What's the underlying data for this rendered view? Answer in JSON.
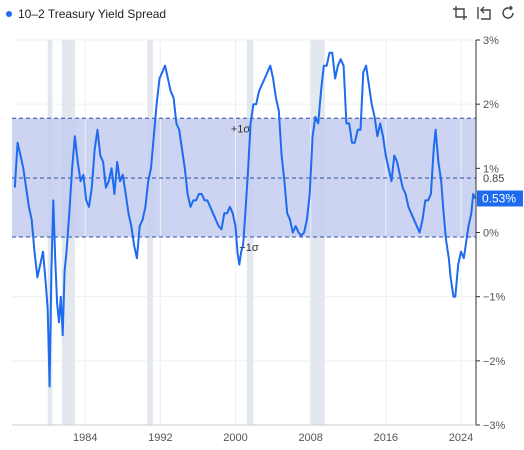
{
  "legend": {
    "series_name": "10–2 Treasury Yield Spread"
  },
  "toolbar": {
    "icons": [
      "crop-icon",
      "undo-icon",
      "refresh-icon"
    ]
  },
  "colors": {
    "line": "#1e6bf0",
    "band": "#c3cdee",
    "recession": "#e3e8ef",
    "badge": "#1e6bf0"
  },
  "chart_data": {
    "type": "line",
    "title": "",
    "xlabel": "",
    "ylabel": "",
    "x_ticks": [
      "1984",
      "1992",
      "2000",
      "2008",
      "2016",
      "2024"
    ],
    "x_tick_values": [
      1984,
      1992,
      2000,
      2008,
      2016,
      2024
    ],
    "xlim": [
      1976.2,
      2025.6
    ],
    "y_ticks": [
      "3%",
      "2%",
      "1%",
      "0%",
      "−1%",
      "−2%",
      "−3%"
    ],
    "y_tick_values": [
      3,
      2,
      1,
      0,
      -1,
      -2,
      -3
    ],
    "ylim": [
      -3,
      3
    ],
    "band": {
      "upper": 1.78,
      "lower": -0.07,
      "upper_label": "+1σ",
      "lower_label": "−1σ"
    },
    "mean": {
      "value": 0.85,
      "label": "0.85"
    },
    "current": {
      "value": 0.53,
      "label": "0.53%"
    },
    "recessions": [
      [
        1980.0,
        1980.5
      ],
      [
        1981.5,
        1982.9
      ],
      [
        1990.6,
        1991.2
      ],
      [
        2001.2,
        2001.9
      ],
      [
        2007.9,
        2009.5
      ]
    ],
    "series": [
      {
        "name": "10–2 Treasury Yield Spread",
        "points": [
          [
            1976.5,
            0.7
          ],
          [
            1976.8,
            1.4
          ],
          [
            1977.1,
            1.2
          ],
          [
            1977.4,
            1.0
          ],
          [
            1977.7,
            0.7
          ],
          [
            1978.0,
            0.4
          ],
          [
            1978.3,
            0.2
          ],
          [
            1978.6,
            -0.3
          ],
          [
            1978.9,
            -0.7
          ],
          [
            1979.2,
            -0.5
          ],
          [
            1979.5,
            -0.3
          ],
          [
            1979.8,
            -0.8
          ],
          [
            1980.0,
            -1.2
          ],
          [
            1980.2,
            -2.4
          ],
          [
            1980.4,
            -0.6
          ],
          [
            1980.6,
            0.5
          ],
          [
            1980.8,
            -0.4
          ],
          [
            1981.0,
            -1.1
          ],
          [
            1981.2,
            -1.4
          ],
          [
            1981.4,
            -1.0
          ],
          [
            1981.6,
            -1.6
          ],
          [
            1981.8,
            -0.6
          ],
          [
            1982.0,
            -0.3
          ],
          [
            1982.3,
            0.3
          ],
          [
            1982.6,
            1.0
          ],
          [
            1982.9,
            1.5
          ],
          [
            1983.2,
            1.1
          ],
          [
            1983.5,
            0.8
          ],
          [
            1983.8,
            0.9
          ],
          [
            1984.1,
            0.5
          ],
          [
            1984.4,
            0.4
          ],
          [
            1984.7,
            0.7
          ],
          [
            1985.0,
            1.3
          ],
          [
            1985.3,
            1.6
          ],
          [
            1985.6,
            1.2
          ],
          [
            1985.9,
            1.1
          ],
          [
            1986.2,
            0.7
          ],
          [
            1986.5,
            0.8
          ],
          [
            1986.8,
            1.0
          ],
          [
            1987.1,
            0.6
          ],
          [
            1987.4,
            1.1
          ],
          [
            1987.7,
            0.8
          ],
          [
            1988.0,
            0.9
          ],
          [
            1988.3,
            0.6
          ],
          [
            1988.6,
            0.3
          ],
          [
            1988.9,
            0.1
          ],
          [
            1989.2,
            -0.2
          ],
          [
            1989.5,
            -0.4
          ],
          [
            1989.8,
            0.1
          ],
          [
            1990.1,
            0.2
          ],
          [
            1990.4,
            0.4
          ],
          [
            1990.7,
            0.8
          ],
          [
            1991.0,
            1.0
          ],
          [
            1991.3,
            1.5
          ],
          [
            1991.6,
            2.0
          ],
          [
            1991.9,
            2.4
          ],
          [
            1992.2,
            2.5
          ],
          [
            1992.5,
            2.6
          ],
          [
            1992.8,
            2.4
          ],
          [
            1993.1,
            2.2
          ],
          [
            1993.4,
            2.1
          ],
          [
            1993.7,
            1.7
          ],
          [
            1994.0,
            1.6
          ],
          [
            1994.3,
            1.3
          ],
          [
            1994.6,
            1.0
          ],
          [
            1994.9,
            0.6
          ],
          [
            1995.2,
            0.4
          ],
          [
            1995.5,
            0.5
          ],
          [
            1995.8,
            0.5
          ],
          [
            1996.1,
            0.6
          ],
          [
            1996.4,
            0.6
          ],
          [
            1996.7,
            0.5
          ],
          [
            1997.0,
            0.5
          ],
          [
            1997.3,
            0.4
          ],
          [
            1997.6,
            0.3
          ],
          [
            1997.9,
            0.2
          ],
          [
            1998.2,
            0.1
          ],
          [
            1998.5,
            0.05
          ],
          [
            1998.8,
            0.3
          ],
          [
            1999.1,
            0.3
          ],
          [
            1999.4,
            0.4
          ],
          [
            1999.7,
            0.3
          ],
          [
            2000.0,
            0.1
          ],
          [
            2000.2,
            -0.3
          ],
          [
            2000.4,
            -0.5
          ],
          [
            2000.6,
            -0.3
          ],
          [
            2000.8,
            -0.2
          ],
          [
            2001.0,
            0.2
          ],
          [
            2001.3,
            0.9
          ],
          [
            2001.6,
            1.7
          ],
          [
            2001.9,
            2.0
          ],
          [
            2002.2,
            2.0
          ],
          [
            2002.5,
            2.2
          ],
          [
            2002.8,
            2.3
          ],
          [
            2003.1,
            2.4
          ],
          [
            2003.4,
            2.5
          ],
          [
            2003.7,
            2.6
          ],
          [
            2004.0,
            2.4
          ],
          [
            2004.3,
            2.1
          ],
          [
            2004.6,
            1.9
          ],
          [
            2004.9,
            1.2
          ],
          [
            2005.2,
            0.8
          ],
          [
            2005.5,
            0.3
          ],
          [
            2005.8,
            0.2
          ],
          [
            2006.1,
            0.0
          ],
          [
            2006.4,
            0.1
          ],
          [
            2006.7,
            0.0
          ],
          [
            2007.0,
            -0.05
          ],
          [
            2007.3,
            0.0
          ],
          [
            2007.6,
            0.2
          ],
          [
            2007.9,
            0.6
          ],
          [
            2008.2,
            1.5
          ],
          [
            2008.5,
            1.8
          ],
          [
            2008.8,
            1.7
          ],
          [
            2009.1,
            2.2
          ],
          [
            2009.4,
            2.6
          ],
          [
            2009.7,
            2.6
          ],
          [
            2010.0,
            2.8
          ],
          [
            2010.3,
            2.8
          ],
          [
            2010.6,
            2.4
          ],
          [
            2010.9,
            2.6
          ],
          [
            2011.2,
            2.7
          ],
          [
            2011.5,
            2.6
          ],
          [
            2011.8,
            1.7
          ],
          [
            2012.1,
            1.7
          ],
          [
            2012.4,
            1.4
          ],
          [
            2012.7,
            1.4
          ],
          [
            2013.0,
            1.6
          ],
          [
            2013.3,
            1.6
          ],
          [
            2013.6,
            2.5
          ],
          [
            2013.9,
            2.6
          ],
          [
            2014.2,
            2.3
          ],
          [
            2014.5,
            2.0
          ],
          [
            2014.8,
            1.8
          ],
          [
            2015.1,
            1.5
          ],
          [
            2015.4,
            1.7
          ],
          [
            2015.7,
            1.5
          ],
          [
            2016.0,
            1.2
          ],
          [
            2016.3,
            1.0
          ],
          [
            2016.6,
            0.8
          ],
          [
            2016.9,
            1.2
          ],
          [
            2017.2,
            1.1
          ],
          [
            2017.5,
            0.9
          ],
          [
            2017.8,
            0.7
          ],
          [
            2018.1,
            0.6
          ],
          [
            2018.4,
            0.4
          ],
          [
            2018.7,
            0.3
          ],
          [
            2019.0,
            0.2
          ],
          [
            2019.3,
            0.1
          ],
          [
            2019.6,
            0.0
          ],
          [
            2019.9,
            0.2
          ],
          [
            2020.2,
            0.5
          ],
          [
            2020.5,
            0.5
          ],
          [
            2020.8,
            0.6
          ],
          [
            2021.1,
            1.3
          ],
          [
            2021.3,
            1.6
          ],
          [
            2021.6,
            1.1
          ],
          [
            2021.9,
            0.8
          ],
          [
            2022.1,
            0.4
          ],
          [
            2022.4,
            -0.1
          ],
          [
            2022.7,
            -0.4
          ],
          [
            2022.9,
            -0.7
          ],
          [
            2023.2,
            -1.0
          ],
          [
            2023.4,
            -1.0
          ],
          [
            2023.7,
            -0.5
          ],
          [
            2024.0,
            -0.3
          ],
          [
            2024.3,
            -0.4
          ],
          [
            2024.5,
            -0.2
          ],
          [
            2024.8,
            0.1
          ],
          [
            2025.1,
            0.3
          ],
          [
            2025.3,
            0.6
          ],
          [
            2025.5,
            0.53
          ]
        ]
      }
    ]
  }
}
